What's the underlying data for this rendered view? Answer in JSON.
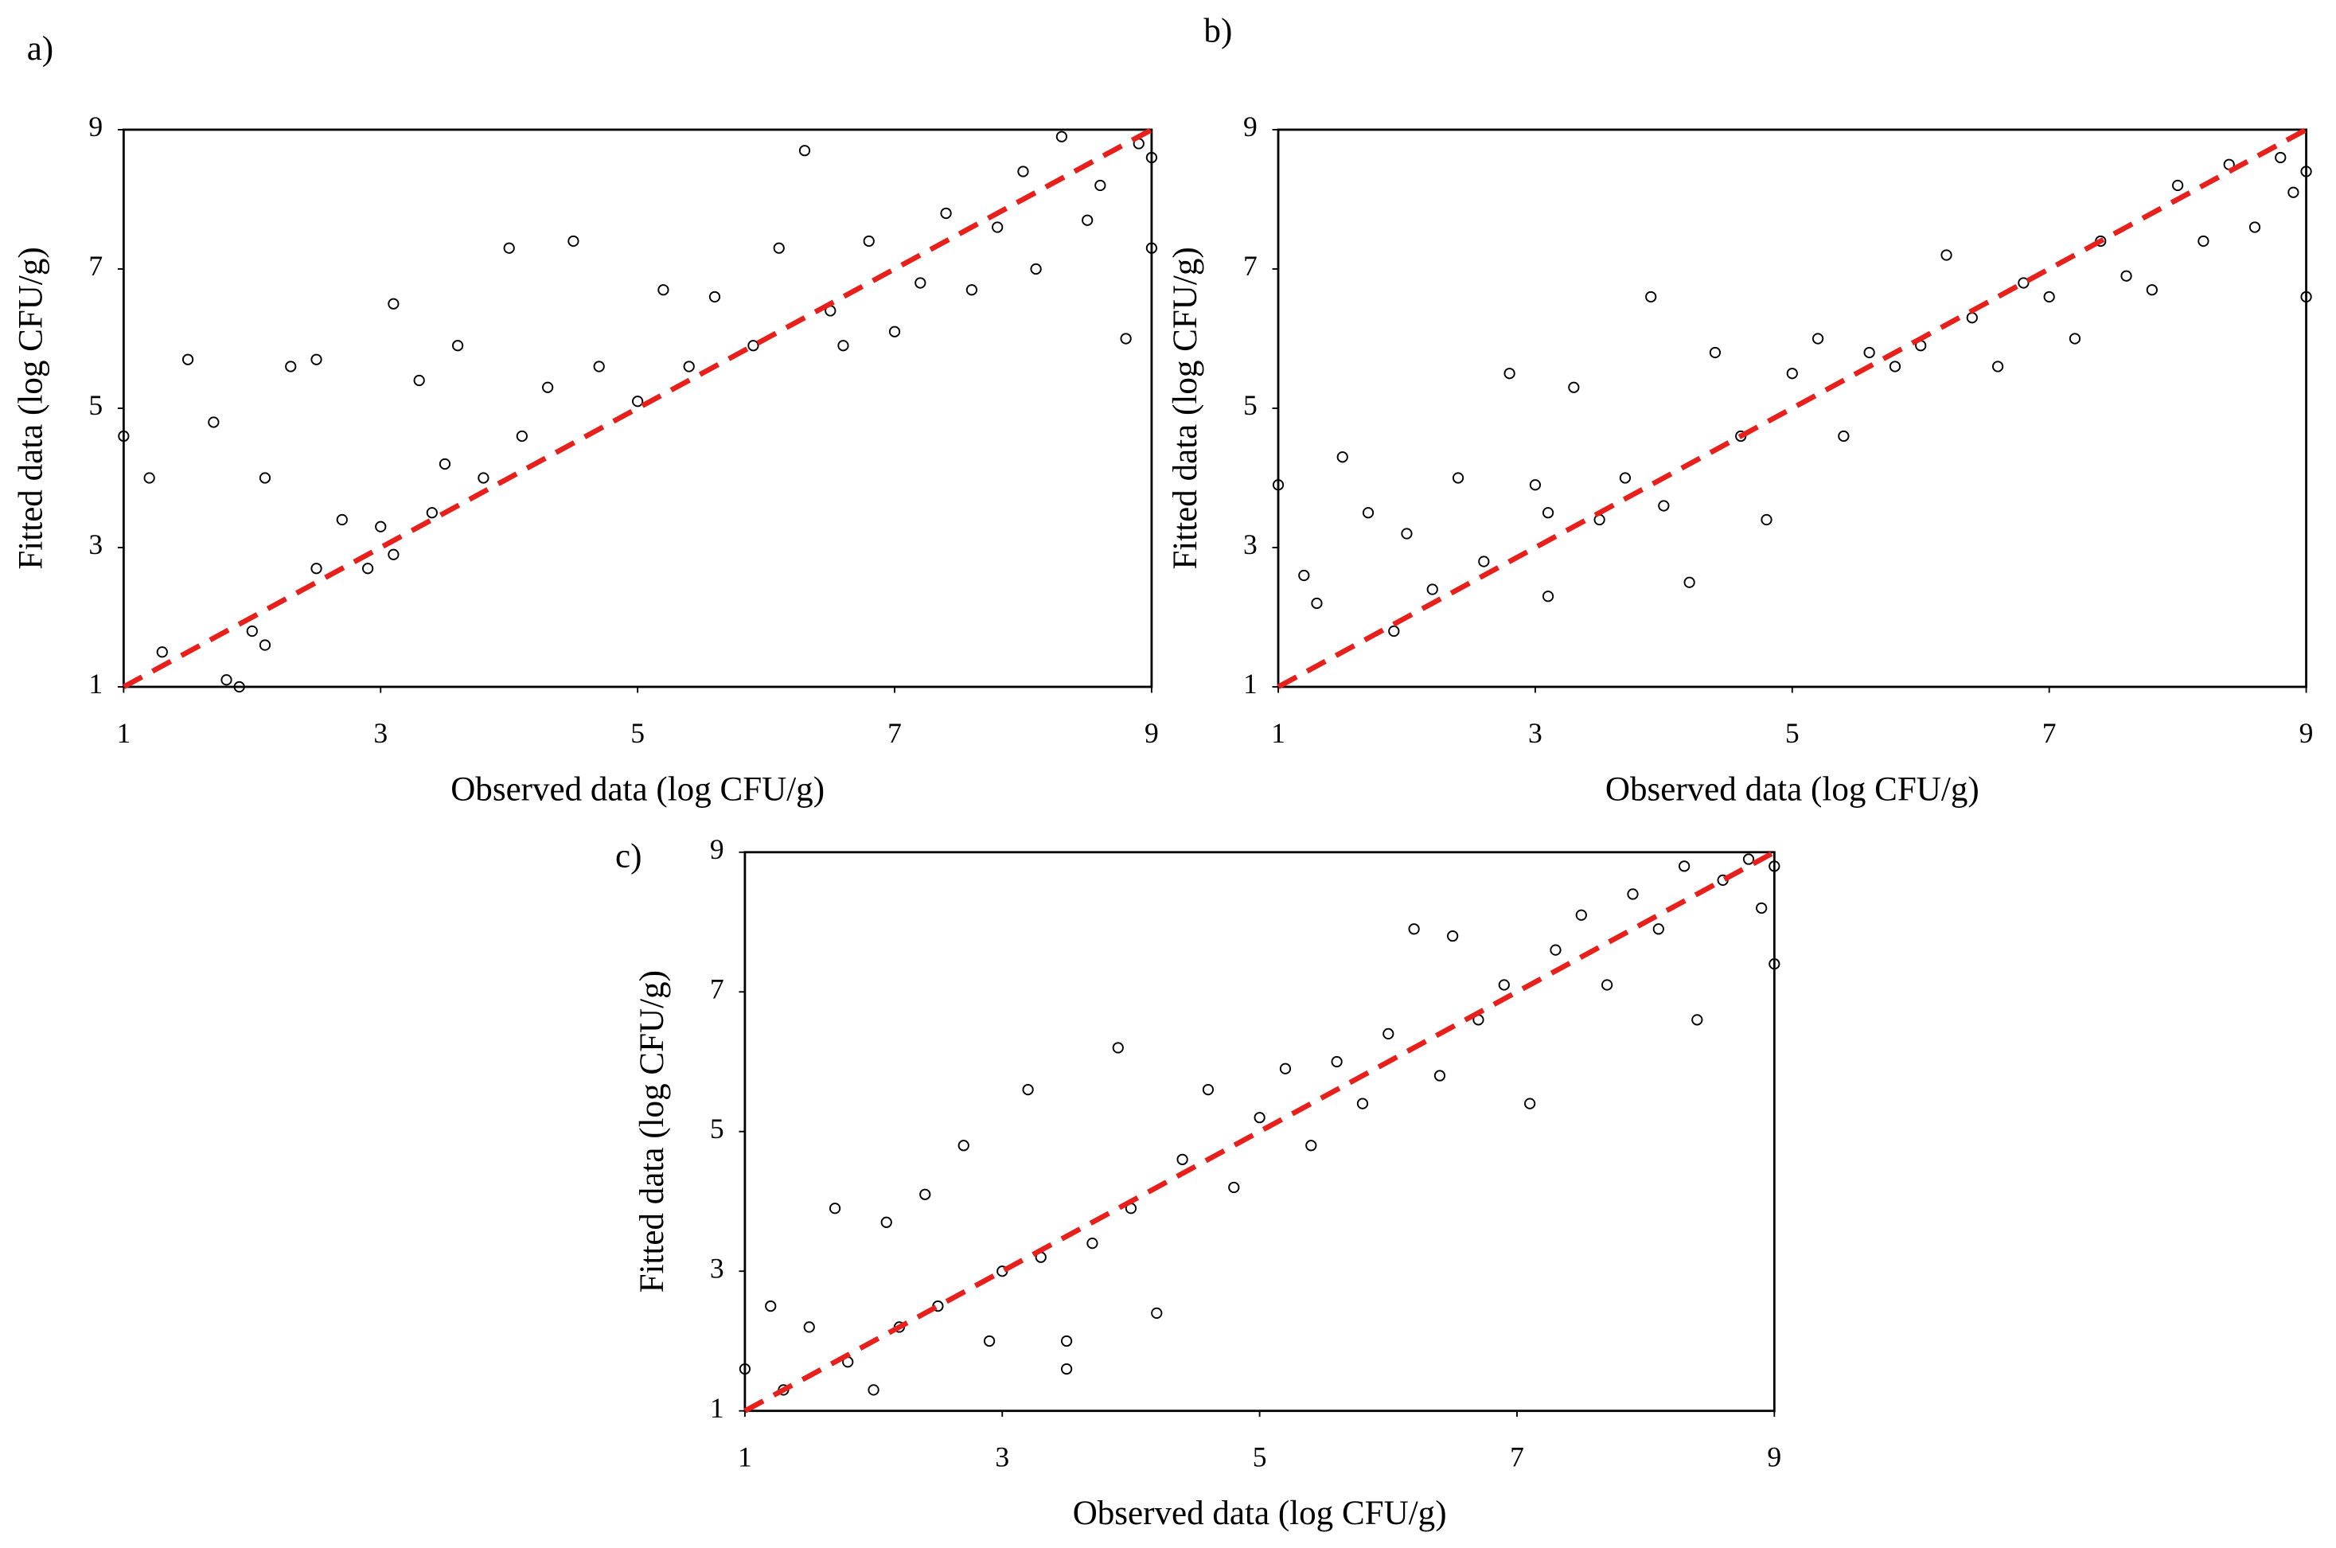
{
  "chart_data": [
    {
      "type": "scatter",
      "panel_label": "a)",
      "x_label": "Observed data (log CFU/g)",
      "y_label": "Fitted data (log CFU/g)",
      "xlim": [
        1,
        9
      ],
      "ylim": [
        1,
        9
      ],
      "xticks": [
        1,
        3,
        5,
        7,
        9
      ],
      "yticks": [
        1,
        3,
        5,
        7,
        9
      ],
      "marker_color": "#000000",
      "x": [
        1.0,
        1.2,
        1.3,
        1.5,
        1.7,
        1.8,
        1.9,
        2.0,
        2.1,
        2.1,
        2.3,
        2.5,
        2.5,
        2.7,
        2.9,
        3.0,
        3.1,
        3.1,
        3.3,
        3.4,
        3.5,
        3.6,
        3.8,
        4.0,
        4.1,
        4.3,
        4.5,
        4.7,
        5.0,
        5.2,
        5.4,
        5.6,
        5.9,
        6.1,
        6.3,
        6.5,
        6.6,
        6.8,
        7.0,
        7.2,
        7.4,
        7.6,
        7.8,
        8.0,
        8.1,
        8.3,
        8.5,
        8.6,
        8.8,
        8.9,
        9.0,
        9.0
      ],
      "y": [
        4.6,
        4.0,
        1.5,
        5.7,
        4.8,
        1.1,
        1.0,
        1.8,
        4.0,
        1.6,
        5.6,
        2.7,
        5.7,
        3.4,
        2.7,
        3.3,
        6.5,
        2.9,
        5.4,
        3.5,
        4.2,
        5.9,
        4.0,
        7.3,
        4.6,
        5.3,
        7.4,
        5.6,
        5.1,
        6.7,
        5.6,
        6.6,
        5.9,
        7.3,
        8.7,
        6.4,
        5.9,
        7.4,
        6.1,
        6.8,
        7.8,
        6.7,
        7.6,
        8.4,
        7.0,
        8.9,
        7.7,
        8.2,
        6.0,
        8.8,
        7.3,
        8.6
      ],
      "reference_line": {
        "x": [
          1,
          9
        ],
        "y": [
          1,
          9
        ],
        "color": "#e8201c"
      }
    },
    {
      "type": "scatter",
      "panel_label": "b)",
      "x_label": "Observed data (log CFU/g)",
      "y_label": "Fitted data (log CFU/g)",
      "xlim": [
        1,
        9
      ],
      "ylim": [
        1,
        9
      ],
      "xticks": [
        1,
        3,
        5,
        7,
        9
      ],
      "yticks": [
        1,
        3,
        5,
        7,
        9
      ],
      "marker_color": "#000000",
      "x": [
        1.0,
        1.2,
        1.3,
        1.5,
        1.7,
        1.9,
        2.0,
        2.2,
        2.4,
        2.6,
        2.8,
        3.0,
        3.1,
        3.1,
        3.3,
        3.5,
        3.7,
        3.9,
        4.0,
        4.2,
        4.4,
        4.6,
        4.8,
        5.0,
        5.2,
        5.4,
        5.6,
        5.8,
        6.0,
        6.2,
        6.4,
        6.6,
        6.8,
        7.0,
        7.2,
        7.4,
        7.6,
        7.8,
        8.0,
        8.2,
        8.4,
        8.6,
        8.8,
        8.9,
        9.0,
        9.0
      ],
      "y": [
        3.9,
        2.6,
        2.2,
        4.3,
        3.5,
        1.8,
        3.2,
        2.4,
        4.0,
        2.8,
        5.5,
        3.9,
        2.3,
        3.5,
        5.3,
        3.4,
        4.0,
        6.6,
        3.6,
        2.5,
        5.8,
        4.6,
        3.4,
        5.5,
        6.0,
        4.6,
        5.8,
        5.6,
        5.9,
        7.2,
        6.3,
        5.6,
        6.8,
        6.6,
        6.0,
        7.4,
        6.9,
        6.7,
        8.2,
        7.4,
        8.5,
        7.6,
        8.6,
        8.1,
        6.6,
        8.4
      ],
      "reference_line": {
        "x": [
          1,
          9
        ],
        "y": [
          1,
          9
        ],
        "color": "#e8201c"
      }
    },
    {
      "type": "scatter",
      "panel_label": "c)",
      "x_label": "Observed data (log CFU/g)",
      "y_label": "Fitted data (log CFU/g)",
      "xlim": [
        1,
        9
      ],
      "ylim": [
        1,
        9
      ],
      "xticks": [
        1,
        3,
        5,
        7,
        9
      ],
      "yticks": [
        1,
        3,
        5,
        7,
        9
      ],
      "marker_color": "#000000",
      "x": [
        1.0,
        1.2,
        1.3,
        1.5,
        1.7,
        1.8,
        2.0,
        2.1,
        2.2,
        2.4,
        2.5,
        2.7,
        2.9,
        3.0,
        3.2,
        3.3,
        3.5,
        3.5,
        3.7,
        3.9,
        4.0,
        4.2,
        4.4,
        4.6,
        4.8,
        5.0,
        5.2,
        5.4,
        5.6,
        5.8,
        6.0,
        6.2,
        6.4,
        6.5,
        6.7,
        6.9,
        7.1,
        7.3,
        7.5,
        7.7,
        7.9,
        8.1,
        8.3,
        8.4,
        8.6,
        8.8,
        8.9,
        9.0,
        9.0
      ],
      "y": [
        1.6,
        2.5,
        1.3,
        2.2,
        3.9,
        1.7,
        1.3,
        3.7,
        2.2,
        4.1,
        2.5,
        4.8,
        2.0,
        3.0,
        5.6,
        3.2,
        1.6,
        2.0,
        3.4,
        6.2,
        3.9,
        2.4,
        4.6,
        5.6,
        4.2,
        5.2,
        5.9,
        4.8,
        6.0,
        5.4,
        6.4,
        7.9,
        5.8,
        7.8,
        6.6,
        7.1,
        5.4,
        7.6,
        8.1,
        7.1,
        8.4,
        7.9,
        8.8,
        6.6,
        8.6,
        8.9,
        8.2,
        7.4,
        8.8
      ],
      "reference_line": {
        "x": [
          1,
          9
        ],
        "y": [
          1,
          9
        ],
        "color": "#e8201c"
      }
    }
  ]
}
